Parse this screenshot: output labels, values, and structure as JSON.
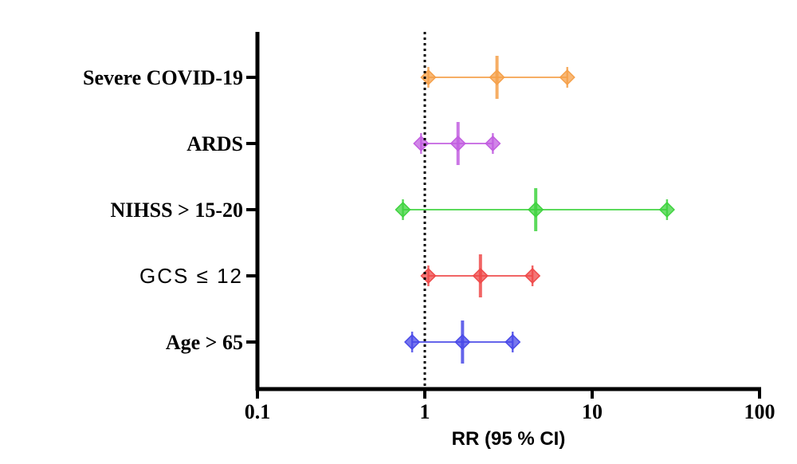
{
  "chart_data": {
    "type": "forest",
    "xscale": "log",
    "xlim": [
      0.1,
      100
    ],
    "reference_line": 1,
    "xlabel": "RR (95 % CI)",
    "x_ticks": [
      "0.1",
      "1",
      "10",
      "100"
    ],
    "grid": false,
    "legend": "none",
    "rows": [
      {
        "label": "Severe COVID-19",
        "rr": 2.7,
        "lower": 1.05,
        "upper": 7.1,
        "color": "#f5a04a",
        "plain": false
      },
      {
        "label": "ARDS",
        "rr": 1.58,
        "lower": 0.95,
        "upper": 2.55,
        "color": "#c25ee0",
        "plain": false
      },
      {
        "label": "NIHSS > 15-20",
        "rr": 4.6,
        "lower": 0.74,
        "upper": 28,
        "color": "#3fd33f",
        "plain": false
      },
      {
        "label": "GCS ≤ 12",
        "rr": 2.15,
        "lower": 1.05,
        "upper": 4.4,
        "color": "#ef4a4a",
        "plain": true
      },
      {
        "label": "Age > 65",
        "rr": 1.68,
        "lower": 0.84,
        "upper": 3.35,
        "color": "#4a4ae8",
        "plain": false
      }
    ]
  }
}
